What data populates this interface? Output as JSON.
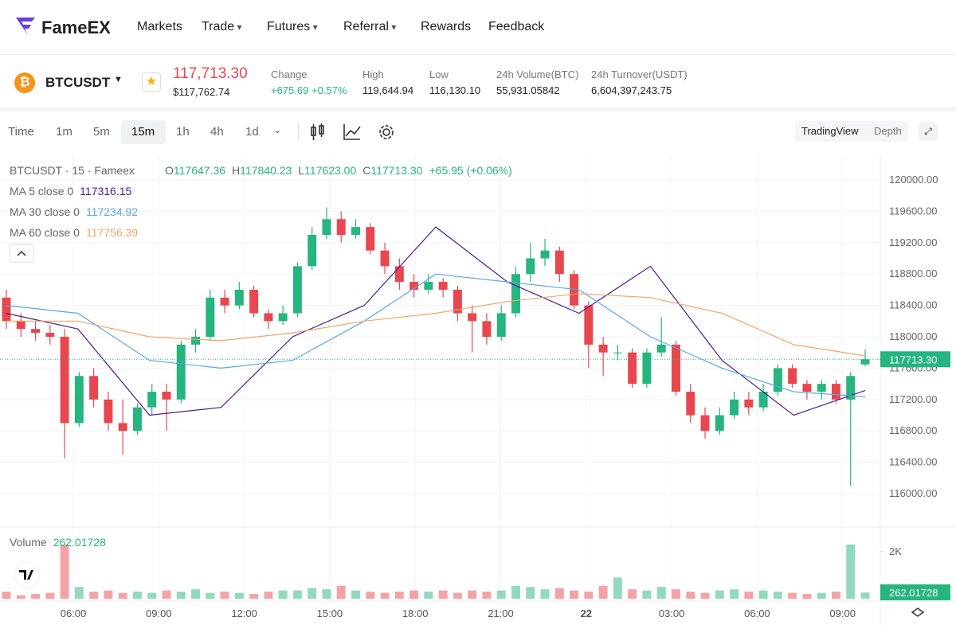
{
  "nav": {
    "logo": "FameEX",
    "items": [
      "Markets",
      "Trade",
      "Futures",
      "Referral",
      "Rewards",
      "Feedback"
    ]
  },
  "ticker": {
    "symbol": "BTCUSDT",
    "price": "117,713.30",
    "price_usd": "$117,762.74",
    "stats": [
      {
        "label": "Change",
        "value": "+675.69 +0.57%"
      },
      {
        "label": "High",
        "value": "119,644.94"
      },
      {
        "label": "Low",
        "value": "116,130.10"
      },
      {
        "label": "24h Volume(BTC)",
        "value": "55,931.05842"
      },
      {
        "label": "24h Turnover(USDT)",
        "value": "6,604,397,243.75"
      }
    ]
  },
  "toolbar": {
    "intervals": [
      "Time",
      "1m",
      "5m",
      "15m",
      "1h",
      "4h",
      "1d"
    ],
    "views": [
      "TradingView",
      "Depth"
    ]
  },
  "chart_data": {
    "type": "candlestick",
    "title": "BTCUSDT · 15 · Fameex",
    "legend": {
      "labels": [
        "O",
        "H",
        "L",
        "C"
      ],
      "values": [
        "117647.36",
        "117840.23",
        "117623.00",
        "117713.30"
      ],
      "change": "+65.95 (+0.06%)"
    },
    "open": [
      118500,
      118200,
      118100,
      118050,
      118000,
      116900,
      117500,
      117200,
      116900,
      116800,
      117100,
      117300,
      117200,
      117900,
      118000,
      118500,
      118400,
      118600,
      118300,
      118200,
      118300,
      118900,
      119300,
      119500,
      119300,
      119400,
      119100,
      118900,
      118700,
      118600,
      118700,
      118600,
      118300,
      118200,
      118000,
      118300,
      118800,
      119000,
      119100,
      118800,
      118400,
      117900,
      117800,
      117800,
      117400,
      117800,
      117900,
      117300,
      117000,
      116800,
      117000,
      117200,
      117100,
      117300,
      117600,
      117400,
      117300,
      117400,
      117200,
      117647.36
    ],
    "high": [
      118600,
      118300,
      118200,
      118150,
      118100,
      117550,
      117600,
      117300,
      117200,
      117150,
      117400,
      117400,
      117950,
      118100,
      118600,
      118600,
      118700,
      118650,
      118350,
      118400,
      118950,
      119400,
      119650,
      119600,
      119500,
      119450,
      119200,
      119000,
      118800,
      118800,
      118750,
      118650,
      118400,
      118300,
      118400,
      118900,
      119200,
      119250,
      119150,
      118850,
      118450,
      118000,
      117900,
      117850,
      117850,
      118250,
      117950,
      117400,
      117100,
      117100,
      117300,
      117300,
      117400,
      117650,
      117650,
      117450,
      117450,
      117450,
      117550,
      117840.23
    ],
    "low": [
      118100,
      118000,
      117950,
      117900,
      116450,
      116850,
      117100,
      116800,
      116500,
      116750,
      117000,
      116800,
      117150,
      117800,
      117950,
      118300,
      118350,
      118250,
      118100,
      118150,
      118250,
      118850,
      119250,
      119200,
      119250,
      119050,
      118800,
      118600,
      118500,
      118550,
      118500,
      118200,
      117800,
      117900,
      117950,
      118250,
      118700,
      118900,
      118700,
      118350,
      117600,
      117500,
      117700,
      117350,
      117350,
      117750,
      117250,
      116900,
      116700,
      116750,
      116950,
      117000,
      117050,
      117250,
      117350,
      117200,
      117200,
      117150,
      116100,
      117623
    ],
    "close": [
      118200,
      118100,
      118050,
      118000,
      116900,
      117500,
      117200,
      116900,
      116800,
      117100,
      117300,
      117200,
      117900,
      118000,
      118500,
      118400,
      118600,
      118300,
      118200,
      118300,
      118900,
      119300,
      119500,
      119300,
      119400,
      119100,
      118900,
      118700,
      118600,
      118700,
      118600,
      118300,
      118200,
      118000,
      118300,
      118800,
      119000,
      119100,
      118800,
      118400,
      117900,
      117800,
      117800,
      117400,
      117800,
      117900,
      117300,
      117000,
      116800,
      117000,
      117200,
      117100,
      117300,
      117600,
      117400,
      117300,
      117400,
      117200,
      117500,
      117713.3
    ],
    "last_price_label": "117713.30",
    "ma": [
      {
        "name": "MA 5 close 0",
        "color": "#4a1d96",
        "value_label": "117316.15",
        "values": [
          118300,
          118100,
          117000,
          117100,
          118000,
          118400,
          119400,
          118700,
          118300,
          118900,
          117700,
          117000,
          117316.15
        ]
      },
      {
        "name": "MA 30 close 0",
        "color": "#5aa9e6",
        "value_label": "117234.92",
        "values": [
          118400,
          118300,
          117700,
          117600,
          117700,
          118200,
          118800,
          118700,
          118600,
          118000,
          117600,
          117300,
          117234.92
        ]
      },
      {
        "name": "MA 60 close 0",
        "color": "#f4a46a",
        "value_label": "117756.39",
        "values": [
          118200,
          118200,
          118000,
          117950,
          118050,
          118200,
          118300,
          118450,
          118550,
          118500,
          118300,
          117900,
          117756.39
        ]
      }
    ],
    "ylim": [
      115594,
      120315
    ],
    "yticks": [
      {
        "value": 116000,
        "label": "116000.00"
      },
      {
        "value": 116400,
        "label": "116400.00"
      },
      {
        "value": 116800,
        "label": "116800.00"
      },
      {
        "value": 117200,
        "label": "117200.00"
      },
      {
        "value": 117600,
        "label": "117600.00"
      },
      {
        "value": 118000,
        "label": "118000.00"
      },
      {
        "value": 118400,
        "label": "118400.00"
      },
      {
        "value": 118800,
        "label": "118800.00"
      },
      {
        "value": 119200,
        "label": "119200.00"
      },
      {
        "value": 119600,
        "label": "119600.00"
      },
      {
        "value": 120000,
        "label": "120000.00"
      }
    ],
    "volume_title": "Volume",
    "volume": [
      300,
      150,
      200,
      250,
      2300,
      500,
      300,
      350,
      250,
      300,
      250,
      350,
      300,
      400,
      250,
      300,
      250,
      200,
      300,
      350,
      350,
      450,
      400,
      550,
      350,
      300,
      250,
      300,
      350,
      300,
      350,
      250,
      350,
      300,
      350,
      550,
      500,
      400,
      450,
      350,
      300,
      550,
      900,
      400,
      350,
      500,
      400,
      300,
      250,
      350,
      400,
      300,
      350,
      300,
      250,
      200,
      250,
      300,
      2300,
      262.01728
    ],
    "volume_ylim": [
      0,
      2400
    ],
    "volume_yticks": [
      {
        "value": 2000,
        "label": "2K"
      }
    ],
    "x_labels": [
      "06:00",
      "09:00",
      "12:00",
      "15:00",
      "18:00",
      "21:00",
      "22",
      "03:00",
      "06:00",
      "09:00"
    ],
    "up_color": "#26b47f",
    "down_color": "#e8474f"
  }
}
